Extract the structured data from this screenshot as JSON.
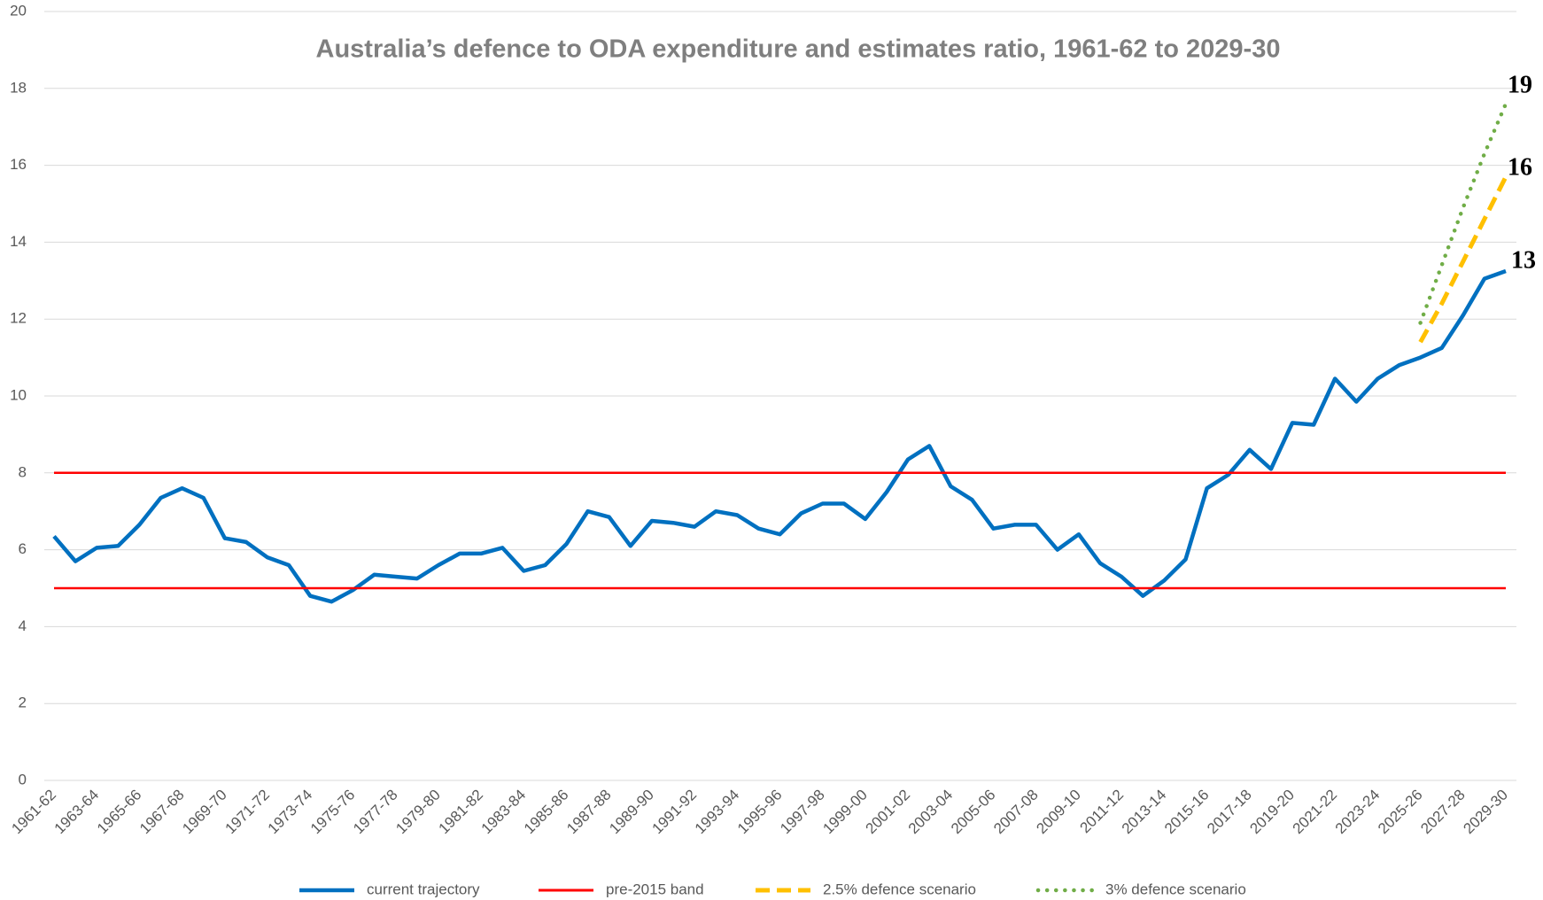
{
  "chart_data": {
    "type": "line",
    "title": "Australia’s defence to ODA expenditure and estimates ratio, 1961-62 to 2029-30",
    "categories": [
      "1961-62",
      null,
      "1963-64",
      null,
      "1965-66",
      null,
      "1967-68",
      null,
      "1969-70",
      null,
      "1971-72",
      null,
      "1973-74",
      null,
      "1975-76",
      null,
      "1977-78",
      null,
      "1979-80",
      null,
      "1981-82",
      null,
      "1983-84",
      null,
      "1985-86",
      null,
      "1987-88",
      null,
      "1989-90",
      null,
      "1991-92",
      null,
      "1993-94",
      null,
      "1995-96",
      null,
      "1997-98",
      null,
      "1999-00",
      null,
      "2001-02",
      null,
      "2003-04",
      null,
      "2005-06",
      null,
      "2007-08",
      null,
      "2009-10",
      null,
      "2011-12",
      null,
      "2013-14",
      null,
      "2015-16",
      null,
      "2017-18",
      null,
      "2019-20",
      null,
      "2021-22",
      null,
      "2023-24",
      null,
      "2025-26",
      null,
      "2027-28",
      null,
      "2029-30"
    ],
    "series": [
      {
        "name": "current trajectory",
        "color": "#0070c0",
        "style": "solid",
        "values": [
          6.35,
          5.7,
          6.05,
          6.1,
          6.65,
          7.35,
          7.6,
          7.35,
          6.3,
          6.2,
          5.8,
          5.6,
          4.8,
          4.65,
          4.95,
          5.35,
          5.3,
          5.25,
          5.6,
          5.9,
          5.9,
          6.05,
          5.45,
          5.6,
          6.15,
          7.0,
          6.85,
          6.1,
          6.75,
          6.7,
          6.6,
          7.0,
          6.9,
          6.55,
          6.4,
          6.95,
          7.2,
          7.2,
          6.8,
          7.5,
          8.35,
          8.7,
          7.65,
          7.3,
          6.55,
          6.65,
          6.65,
          6.0,
          6.4,
          5.65,
          5.3,
          4.8,
          5.2,
          5.75,
          7.6,
          7.95,
          8.6,
          8.1,
          9.3,
          9.25,
          10.45,
          9.85,
          10.45,
          10.8,
          11.0,
          11.25,
          12.1,
          13.05,
          13.25
        ]
      },
      {
        "name": "pre-2015 band",
        "color": "#ff0000",
        "style": "band",
        "band": [
          5,
          8
        ]
      },
      {
        "name": "2.5% defence scenario",
        "color": "#ffc000",
        "style": "dashed",
        "values": [
          null,
          null,
          null,
          null,
          null,
          null,
          null,
          null,
          null,
          null,
          null,
          null,
          null,
          null,
          null,
          null,
          null,
          null,
          null,
          null,
          null,
          null,
          null,
          null,
          null,
          null,
          null,
          null,
          null,
          null,
          null,
          null,
          null,
          null,
          null,
          null,
          null,
          null,
          null,
          null,
          null,
          null,
          null,
          null,
          null,
          null,
          null,
          null,
          null,
          null,
          null,
          null,
          null,
          null,
          null,
          null,
          null,
          null,
          null,
          null,
          null,
          null,
          null,
          null,
          11.4,
          12.4,
          13.5,
          14.6,
          15.7
        ]
      },
      {
        "name": "3% defence scenario",
        "color": "#70ad47",
        "style": "dotted",
        "values": [
          null,
          null,
          null,
          null,
          null,
          null,
          null,
          null,
          null,
          null,
          null,
          null,
          null,
          null,
          null,
          null,
          null,
          null,
          null,
          null,
          null,
          null,
          null,
          null,
          null,
          null,
          null,
          null,
          null,
          null,
          null,
          null,
          null,
          null,
          null,
          null,
          null,
          null,
          null,
          null,
          null,
          null,
          null,
          null,
          null,
          null,
          null,
          null,
          null,
          null,
          null,
          null,
          null,
          null,
          null,
          null,
          null,
          null,
          null,
          null,
          null,
          null,
          null,
          null,
          11.9,
          13.4,
          14.9,
          16.3,
          17.6
        ]
      }
    ],
    "annotations": [
      "19",
      "16",
      "13"
    ],
    "ylim": [
      0,
      20
    ],
    "yticks": [
      0,
      2,
      4,
      6,
      8,
      10,
      12,
      14,
      16,
      18,
      20
    ],
    "grid": true,
    "legend": "bottom"
  }
}
